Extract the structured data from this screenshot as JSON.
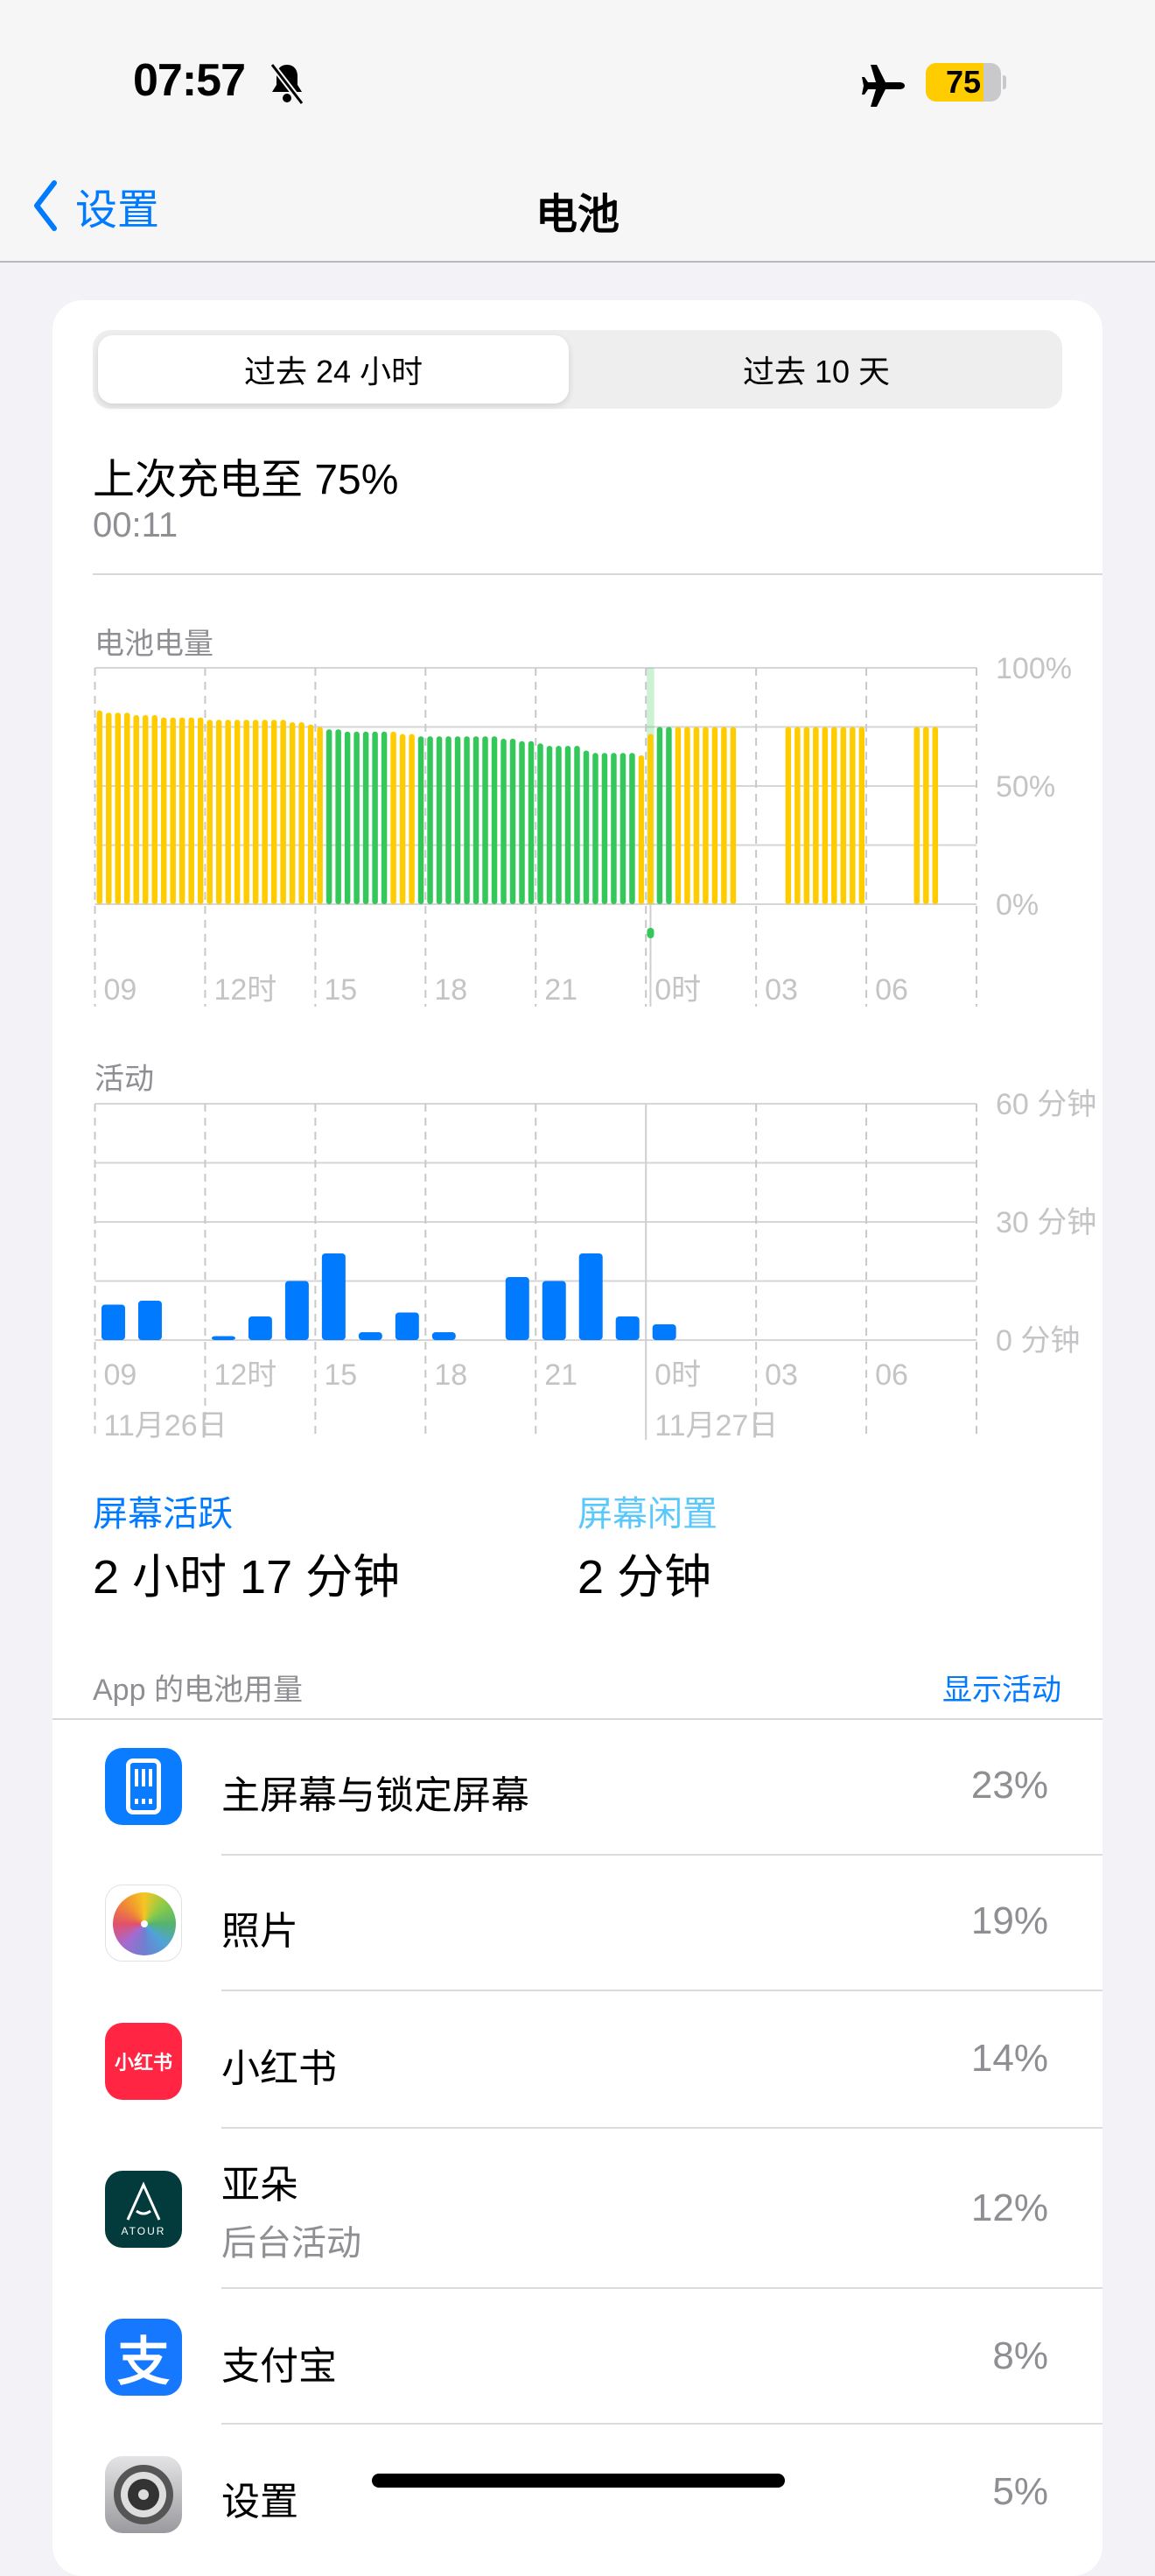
{
  "status_bar": {
    "time": "07:57",
    "battery_level": "75",
    "battery_color": "#ffcc00",
    "icons": [
      "bell-slash-icon",
      "airplane-icon",
      "battery-icon"
    ]
  },
  "nav": {
    "back_label": "设置",
    "title": "电池"
  },
  "segmented": {
    "options": [
      "过去 24 小时",
      "过去 10 天"
    ],
    "selected": 0
  },
  "last_charge": {
    "title": "上次充电至 75%",
    "time": "00:11"
  },
  "battery_chart": {
    "label": "电池电量"
  },
  "activity_chart": {
    "label": "活动"
  },
  "chart_data": [
    {
      "type": "bar",
      "title": "电池电量",
      "interval": "15 minutes",
      "start": "09:00",
      "x_tick_labels": [
        "09",
        "12时",
        "15",
        "18",
        "21",
        "0时",
        "03",
        "06"
      ],
      "y_tick_labels": [
        "100%",
        "50%",
        "0%"
      ],
      "ylim": [
        0,
        100
      ],
      "grid": true,
      "colors": {
        "y": "#ffcc00",
        "g": "#34c759",
        "charge_marker": "#34c759"
      },
      "charge_slot": 60,
      "values": [
        82,
        81,
        81,
        81,
        80,
        80,
        80,
        79,
        79,
        79,
        79,
        79,
        78,
        78,
        78,
        78,
        78,
        78,
        78,
        78,
        78,
        77,
        77,
        76,
        75,
        74,
        74,
        73,
        73,
        73,
        73,
        73,
        73,
        72,
        72,
        71,
        71,
        71,
        71,
        71,
        71,
        71,
        71,
        71,
        70,
        70,
        69,
        69,
        68,
        67,
        67,
        67,
        67,
        65,
        64,
        64,
        64,
        64,
        64,
        63,
        72,
        75,
        75,
        75,
        75,
        75,
        75,
        75,
        75,
        75,
        null,
        null,
        null,
        null,
        null,
        75,
        75,
        75,
        75,
        75,
        75,
        75,
        75,
        75,
        null,
        null,
        null,
        null,
        null,
        75,
        75,
        75,
        null,
        null,
        null,
        null
      ],
      "states": "yyyyyyyyyyyyyyyyyyyyyyyyygggggggyyyggggggggggggggggggggggggyygg yyyyyyyy     yyyyyyyyy     yyy    "
    },
    {
      "type": "bar",
      "title": "活动",
      "interval": "1 hour",
      "start": "09:00",
      "x_tick_labels": [
        "09",
        "12时",
        "15",
        "18",
        "21",
        "0时",
        "03",
        "06"
      ],
      "date_labels": [
        "11月26日",
        "11月27日"
      ],
      "y_tick_labels": [
        "60 分钟",
        "30 分钟",
        "0 分钟"
      ],
      "ylim": [
        0,
        60
      ],
      "grid": true,
      "color": "#007aff",
      "values": [
        9,
        10,
        0,
        1,
        6,
        15,
        22,
        2,
        7,
        2,
        0,
        16,
        15,
        22,
        6,
        4,
        0,
        0,
        0,
        0,
        0,
        0,
        0,
        0
      ]
    }
  ],
  "screen": {
    "active_label": "屏幕活跃",
    "active_value": "2 小时 17 分钟",
    "idle_label": "屏幕闲置",
    "idle_value": "2 分钟"
  },
  "apps_section": {
    "title": "App 的电池用量",
    "action": "显示活动"
  },
  "apps": [
    {
      "name": "主屏幕与锁定屏幕",
      "pct": "23%",
      "icon": "home-lock-screen-icon"
    },
    {
      "name": "照片",
      "pct": "19%",
      "icon": "photos-icon"
    },
    {
      "name": "小红书",
      "pct": "14%",
      "icon": "xiaohongshu-icon",
      "icon_text": "小红书"
    },
    {
      "name": "亚朵",
      "sub": "后台活动",
      "pct": "12%",
      "icon": "atour-icon",
      "icon_text": "ATOUR"
    },
    {
      "name": "支付宝",
      "pct": "8%",
      "icon": "alipay-icon",
      "icon_text": "支"
    },
    {
      "name": "设置",
      "pct": "5%",
      "icon": "settings-gear-icon"
    }
  ]
}
